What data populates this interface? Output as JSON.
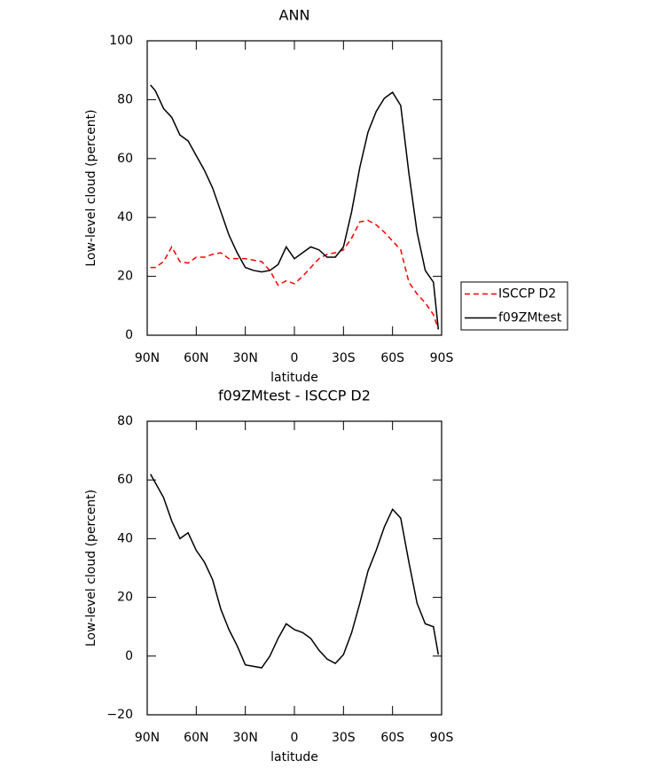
{
  "chart_data": [
    {
      "type": "line",
      "title": "ANN",
      "xlabel": "latitude",
      "ylabel": "Low-level cloud (percent)",
      "xlim": [
        90,
        -90
      ],
      "ylim": [
        0,
        100
      ],
      "xticks": [
        {
          "value": 90,
          "label": "90N"
        },
        {
          "value": 60,
          "label": "60N"
        },
        {
          "value": 30,
          "label": "30N"
        },
        0,
        {
          "value": -30,
          "label": "30S"
        },
        {
          "value": -60,
          "label": "60S"
        },
        {
          "value": -90,
          "label": "90S"
        }
      ],
      "yticks": [
        0,
        20,
        40,
        60,
        80,
        100
      ],
      "x": [
        88,
        85,
        80,
        75,
        70,
        65,
        60,
        55,
        50,
        45,
        40,
        35,
        30,
        25,
        20,
        15,
        10,
        5,
        0,
        -5,
        -10,
        -15,
        -20,
        -25,
        -30,
        -35,
        -40,
        -45,
        -50,
        -55,
        -60,
        -65,
        -70,
        -75,
        -80,
        -85,
        -88
      ],
      "series": [
        {
          "name": "ISCCP D2",
          "color": "#ff0000",
          "dashed": true,
          "values": [
            23,
            23,
            25,
            30,
            25,
            24.5,
            26.5,
            26.5,
            27.5,
            28,
            26,
            26,
            26,
            25.5,
            25,
            22,
            17,
            18.5,
            17.5,
            20,
            23,
            26,
            27.5,
            28,
            29,
            33,
            38.5,
            39,
            37.5,
            35,
            32,
            29,
            18,
            14,
            11,
            7,
            2
          ]
        },
        {
          "name": "f09ZMtest",
          "color": "#000000",
          "dashed": false,
          "values": [
            85,
            83,
            77,
            74,
            68,
            66,
            61,
            56,
            50,
            42,
            34,
            28,
            23,
            22,
            21.5,
            22,
            24,
            30,
            26,
            28,
            30,
            29,
            26.5,
            26.5,
            30,
            42,
            57,
            69,
            76,
            80.5,
            82.5,
            78,
            55,
            35,
            22,
            18,
            2
          ]
        }
      ]
    },
    {
      "type": "line",
      "title": "f09ZMtest - ISCCP D2",
      "xlabel": "latitude",
      "ylabel": "Low-level cloud (percent)",
      "xlim": [
        90,
        -90
      ],
      "ylim": [
        -20,
        80
      ],
      "xticks": [
        {
          "value": 90,
          "label": "90N"
        },
        {
          "value": 60,
          "label": "60N"
        },
        {
          "value": 30,
          "label": "30N"
        },
        0,
        {
          "value": -30,
          "label": "30S"
        },
        {
          "value": -60,
          "label": "60S"
        },
        {
          "value": -90,
          "label": "90S"
        }
      ],
      "yticks": [
        {
          "value": -20,
          "label": "−20"
        },
        0,
        20,
        40,
        60,
        80
      ],
      "x": [
        88,
        85,
        80,
        75,
        70,
        65,
        60,
        55,
        50,
        45,
        40,
        35,
        30,
        25,
        20,
        15,
        10,
        5,
        0,
        -5,
        -10,
        -15,
        -20,
        -25,
        -30,
        -35,
        -40,
        -45,
        -50,
        -55,
        -60,
        -65,
        -70,
        -75,
        -80,
        -85,
        -88
      ],
      "series": [
        {
          "color": "#000000",
          "dashed": false,
          "values": [
            62,
            59,
            54,
            46,
            40,
            42,
            36,
            32,
            26,
            16,
            9,
            3.5,
            -3,
            -3.5,
            -4,
            0,
            6,
            11,
            9,
            8,
            6,
            2,
            -1,
            -2.5,
            0.5,
            8,
            18,
            29,
            36,
            44,
            50,
            47,
            32,
            18,
            11,
            10,
            0.5
          ]
        }
      ]
    }
  ]
}
